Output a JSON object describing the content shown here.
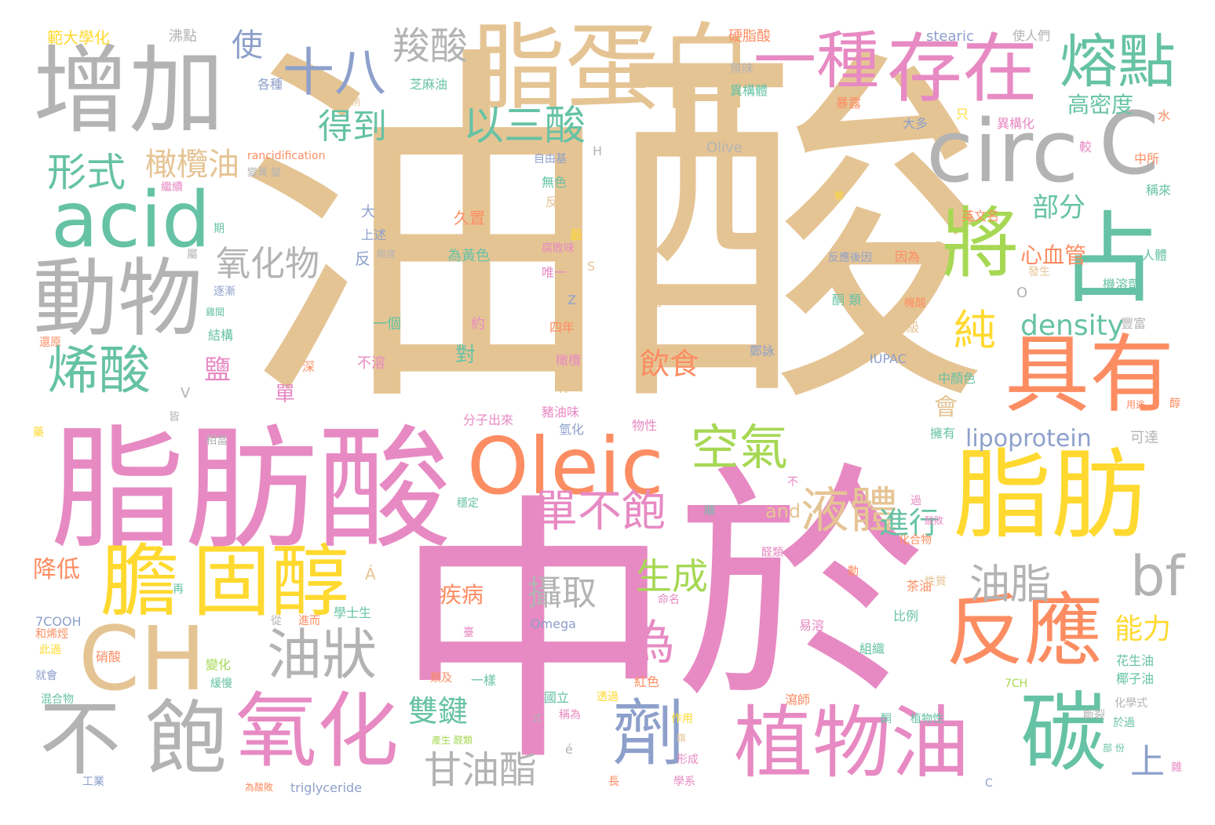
{
  "palette": {
    "tan": "#e5c494",
    "pink": "#e78ac3",
    "gray": "#b3b3b3",
    "green": "#66c2a5",
    "orange": "#fc8d62",
    "yellow": "#ffd92f",
    "lime": "#a6d854",
    "blue": "#8da0cb"
  },
  "words": [
    {
      "t": "油酸",
      "c": "tan"
    },
    {
      "t": "中",
      "c": "pink"
    },
    {
      "t": "於",
      "c": "pink"
    },
    {
      "t": "脂肪酸",
      "c": "pink"
    },
    {
      "t": "增加",
      "c": "gray"
    },
    {
      "t": "脂蛋白",
      "c": "tan"
    },
    {
      "t": "存在",
      "c": "pink"
    },
    {
      "t": "一種",
      "c": "pink"
    },
    {
      "t": "熔點",
      "c": "green"
    },
    {
      "t": "circ",
      "c": "gray"
    },
    {
      "t": "C",
      "c": "gray"
    },
    {
      "t": "acid",
      "c": "green"
    },
    {
      "t": "將",
      "c": "lime"
    },
    {
      "t": "占",
      "c": "green"
    },
    {
      "t": "動物",
      "c": "gray"
    },
    {
      "t": "具有",
      "c": "orange"
    },
    {
      "t": "脂肪",
      "c": "yellow"
    },
    {
      "t": "Oleic",
      "c": "orange"
    },
    {
      "t": "膽",
      "c": "yellow"
    },
    {
      "t": "固醇",
      "c": "yellow"
    },
    {
      "t": "CH",
      "c": "tan"
    },
    {
      "t": "反應",
      "c": "orange"
    },
    {
      "t": "植物油",
      "c": "pink"
    },
    {
      "t": "碳",
      "c": "green"
    },
    {
      "t": "氧化",
      "c": "pink"
    },
    {
      "t": "不",
      "c": "gray"
    },
    {
      "t": "飽",
      "c": "gray"
    },
    {
      "t": "劑",
      "c": "blue"
    },
    {
      "t": "十八",
      "c": "blue"
    },
    {
      "t": "羧酸",
      "c": "gray"
    },
    {
      "t": "烯酸",
      "c": "green"
    },
    {
      "t": "bf",
      "c": "gray"
    },
    {
      "t": "油狀",
      "c": "gray"
    },
    {
      "t": "以三酸",
      "c": "green"
    },
    {
      "t": "得到",
      "c": "green"
    },
    {
      "t": "橄欖油",
      "c": "tan"
    },
    {
      "t": "形式",
      "c": "green"
    },
    {
      "t": "使",
      "c": "blue"
    },
    {
      "t": "氧化物",
      "c": "gray"
    },
    {
      "t": "液體",
      "c": "tan"
    },
    {
      "t": "空氣",
      "c": "lime"
    },
    {
      "t": "單不飽",
      "c": "pink"
    },
    {
      "t": "純",
      "c": "yellow"
    },
    {
      "t": "density",
      "c": "green"
    },
    {
      "t": "油脂",
      "c": "gray"
    },
    {
      "t": "甘油酯",
      "c": "gray"
    },
    {
      "t": "雙鍵",
      "c": "green"
    },
    {
      "t": "生成",
      "c": "lime"
    },
    {
      "t": "攝取",
      "c": "gray"
    },
    {
      "t": "為",
      "c": "pink"
    },
    {
      "t": "進行",
      "c": "green"
    },
    {
      "t": "部分",
      "c": "green"
    },
    {
      "t": "心血管",
      "c": "orange"
    },
    {
      "t": "高密度",
      "c": "green"
    },
    {
      "t": "能力",
      "c": "yellow"
    },
    {
      "t": "上",
      "c": "blue"
    },
    {
      "t": "飲食",
      "c": "orange"
    },
    {
      "t": "lipoprotein",
      "c": "blue"
    },
    {
      "t": "降低",
      "c": "orange"
    },
    {
      "t": "鹽",
      "c": "pink"
    },
    {
      "t": "單",
      "c": "pink"
    },
    {
      "t": "會",
      "c": "tan"
    },
    {
      "t": "疾病",
      "c": "orange"
    },
    {
      "t": "對",
      "c": "green"
    },
    {
      "t": "and",
      "c": "tan"
    },
    {
      "t": "範大學化",
      "c": "yellow"
    },
    {
      "t": "沸點",
      "c": "gray"
    },
    {
      "t": "硬脂酸",
      "c": "orange"
    },
    {
      "t": "stearic",
      "c": "blue"
    },
    {
      "t": "使人們",
      "c": "gray"
    },
    {
      "t": "各種",
      "c": "blue"
    },
    {
      "t": "芝麻油",
      "c": "green"
    },
    {
      "t": "無味",
      "c": "gray"
    },
    {
      "t": "異構體",
      "c": "green"
    },
    {
      "t": "暴露",
      "c": "orange"
    },
    {
      "t": "程柄",
      "c": "tan"
    },
    {
      "t": "大多",
      "c": "blue"
    },
    {
      "t": "只",
      "c": "yellow"
    },
    {
      "t": "異構化",
      "c": "pink"
    },
    {
      "t": "水",
      "c": "orange"
    },
    {
      "t": "較",
      "c": "pink"
    },
    {
      "t": "Olive",
      "c": "gray"
    },
    {
      "t": "H",
      "c": "gray"
    },
    {
      "t": "rancidification",
      "c": "orange"
    },
    {
      "t": "自由基",
      "c": "blue"
    },
    {
      "t": "變黃 變",
      "c": "gray"
    },
    {
      "t": "中所",
      "c": "orange"
    },
    {
      "t": "繼續",
      "c": "pink"
    },
    {
      "t": "無色",
      "c": "green"
    },
    {
      "t": "稱來",
      "c": "green"
    },
    {
      "t": "久置",
      "c": "orange"
    },
    {
      "t": "反式",
      "c": "tan"
    },
    {
      "t": "英文名",
      "c": "orange"
    },
    {
      "t": "大",
      "c": "blue"
    },
    {
      "t": "上述",
      "c": "blue"
    },
    {
      "t": "反",
      "c": "blue"
    },
    {
      "t": "為黃色",
      "c": "green"
    },
    {
      "t": "最",
      "c": "yellow"
    },
    {
      "t": "腐敗味",
      "c": "pink"
    },
    {
      "t": "反應後因",
      "c": "blue"
    },
    {
      "t": "因為",
      "c": "orange"
    },
    {
      "t": "人體",
      "c": "green"
    },
    {
      "t": "機溶劑",
      "c": "green"
    },
    {
      "t": "唯一",
      "c": "pink"
    },
    {
      "t": "S",
      "c": "tan"
    },
    {
      "t": "發生",
      "c": "tan"
    },
    {
      "t": "O",
      "c": "gray"
    },
    {
      "t": "Z",
      "c": "blue"
    },
    {
      "t": "圖一",
      "c": "tan"
    },
    {
      "t": "酮 類",
      "c": "green"
    },
    {
      "t": "機酸",
      "c": "orange"
    },
    {
      "t": "一個",
      "c": "green"
    },
    {
      "t": "約",
      "c": "pink"
    },
    {
      "t": "四年",
      "c": "orange"
    },
    {
      "t": "級",
      "c": "tan"
    },
    {
      "t": "結構",
      "c": "green"
    },
    {
      "t": "還原",
      "c": "orange"
    },
    {
      "t": "深",
      "c": "orange"
    },
    {
      "t": "不溶",
      "c": "pink"
    },
    {
      "t": "橄欖",
      "c": "pink"
    },
    {
      "t": "鄭詠",
      "c": "blue"
    },
    {
      "t": "IUPAC",
      "c": "blue"
    },
    {
      "t": "中顏色",
      "c": "green"
    },
    {
      "t": "豐富",
      "c": "gray"
    },
    {
      "t": "V",
      "c": "gray"
    },
    {
      "t": "R",
      "c": "tan"
    },
    {
      "t": "豬油味",
      "c": "pink"
    },
    {
      "t": "分子出來",
      "c": "pink"
    },
    {
      "t": "氫化",
      "c": "blue"
    },
    {
      "t": "物性",
      "c": "pink"
    },
    {
      "t": "擁有",
      "c": "green"
    },
    {
      "t": "可達",
      "c": "gray"
    },
    {
      "t": "皆",
      "c": "gray"
    },
    {
      "t": "相當",
      "c": "gray"
    },
    {
      "t": "用途",
      "c": "orange"
    },
    {
      "t": "穩定",
      "c": "green"
    },
    {
      "t": "不",
      "c": "pink"
    },
    {
      "t": "過",
      "c": "pink"
    },
    {
      "t": "酸敗",
      "c": "pink"
    },
    {
      "t": "順",
      "c": "green"
    },
    {
      "t": "化合物",
      "c": "orange"
    },
    {
      "t": "醛類",
      "c": "pink"
    },
    {
      "t": "Á",
      "c": "tan"
    },
    {
      "t": "再",
      "c": "green"
    },
    {
      "t": "動",
      "c": "orange"
    },
    {
      "t": "茶油",
      "c": "orange"
    },
    {
      "t": "學士生",
      "c": "green"
    },
    {
      "t": "命名",
      "c": "pink"
    },
    {
      "t": "性質",
      "c": "tan"
    },
    {
      "t": "比例",
      "c": "green"
    },
    {
      "t": "7COOH",
      "c": "blue"
    },
    {
      "t": "和烯烴",
      "c": "orange"
    },
    {
      "t": "從",
      "c": "gray"
    },
    {
      "t": "進而",
      "c": "orange"
    },
    {
      "t": "臺",
      "c": "pink"
    },
    {
      "t": "Omega",
      "c": "blue"
    },
    {
      "t": "易溶",
      "c": "pink"
    },
    {
      "t": "此過",
      "c": "yellow"
    },
    {
      "t": "硝酸",
      "c": "orange"
    },
    {
      "t": "變化",
      "c": "lime"
    },
    {
      "t": "組織",
      "c": "green"
    },
    {
      "t": "花生油",
      "c": "green"
    },
    {
      "t": "就會",
      "c": "blue"
    },
    {
      "t": "類及",
      "c": "orange"
    },
    {
      "t": "一樣",
      "c": "green"
    },
    {
      "t": "紅色",
      "c": "orange"
    },
    {
      "t": "椰子油",
      "c": "green"
    },
    {
      "t": "混合物",
      "c": "green"
    },
    {
      "t": "緩慢",
      "c": "green"
    },
    {
      "t": "國立",
      "c": "green"
    },
    {
      "t": "透過",
      "c": "yellow"
    },
    {
      "t": "瀉師",
      "c": "orange"
    },
    {
      "t": "7CH",
      "c": "lime"
    },
    {
      "t": "化學式",
      "c": "gray"
    },
    {
      "t": "作用",
      "c": "yellow"
    },
    {
      "t": "稱為",
      "c": "pink"
    },
    {
      "t": "植物性",
      "c": "green"
    },
    {
      "t": "於過",
      "c": "green"
    },
    {
      "t": "式",
      "c": "gray"
    },
    {
      "t": "產生 醛類",
      "c": "lime"
    },
    {
      "t": "é",
      "c": "gray"
    },
    {
      "t": "形成",
      "c": "pink"
    },
    {
      "t": "部 份",
      "c": "green"
    },
    {
      "t": "工業",
      "c": "blue"
    },
    {
      "t": "為酸敗",
      "c": "orange"
    },
    {
      "t": "triglyceride",
      "c": "blue"
    },
    {
      "t": "長",
      "c": "orange"
    },
    {
      "t": "學系",
      "c": "pink"
    },
    {
      "t": "C",
      "c": "blue"
    },
    {
      "t": "被",
      "c": "yellow"
    },
    {
      "t": "酸度",
      "c": "gray"
    },
    {
      "t": "期",
      "c": "green"
    },
    {
      "t": "逐漸",
      "c": "blue"
    },
    {
      "t": "雞聞",
      "c": "green"
    },
    {
      "t": "醇",
      "c": "orange"
    },
    {
      "t": "藥",
      "c": "yellow"
    },
    {
      "t": "斷裂",
      "c": "gray"
    },
    {
      "t": "屬",
      "c": "gray"
    },
    {
      "t": "雜",
      "c": "pink"
    },
    {
      "t": "旗",
      "c": "tan"
    },
    {
      "t": "酮",
      "c": "green"
    }
  ]
}
